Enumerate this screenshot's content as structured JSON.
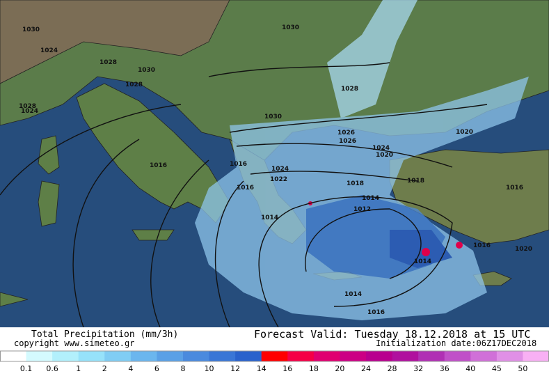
{
  "header": {
    "title": "Total Precipitation (mm/3h)",
    "forecast": "Forecast Valid:  Tuesday 18.12.2018 at 15 UTC",
    "copyright": "copyright www.simeteo.gr",
    "init": "Initialization date:06Z17DEC2018"
  },
  "isobars": {
    "labels": [
      "1030",
      "1030",
      "1024",
      "1028",
      "1030",
      "1028",
      "1024",
      "1028",
      "1030",
      "1028",
      "1026",
      "1026",
      "1024",
      "1020",
      "1024",
      "1022",
      "1020",
      "1018",
      "1016",
      "1014",
      "1012",
      "1018",
      "1016",
      "1014",
      "1016",
      "1020",
      "1014",
      "1014",
      "1016",
      "1016",
      "1016"
    ]
  },
  "legend": {
    "levels": [
      0.1,
      0.6,
      1,
      2,
      4,
      6,
      8,
      10,
      12,
      14,
      16,
      18,
      20,
      24,
      28,
      32,
      36,
      40,
      45,
      50
    ],
    "colors": [
      "#ffffff",
      "#d4fafe",
      "#b2f0fc",
      "#96e2fa",
      "#80cdf4",
      "#6bb6ee",
      "#5aa0e6",
      "#4a8ade",
      "#3a76d6",
      "#2a62cc",
      "#ff0000",
      "#f50046",
      "#e00070",
      "#cc0084",
      "#b8008e",
      "#b0109e",
      "#b030b4",
      "#c050c8",
      "#d070d8",
      "#e090e6",
      "#f8b0f4"
    ]
  }
}
